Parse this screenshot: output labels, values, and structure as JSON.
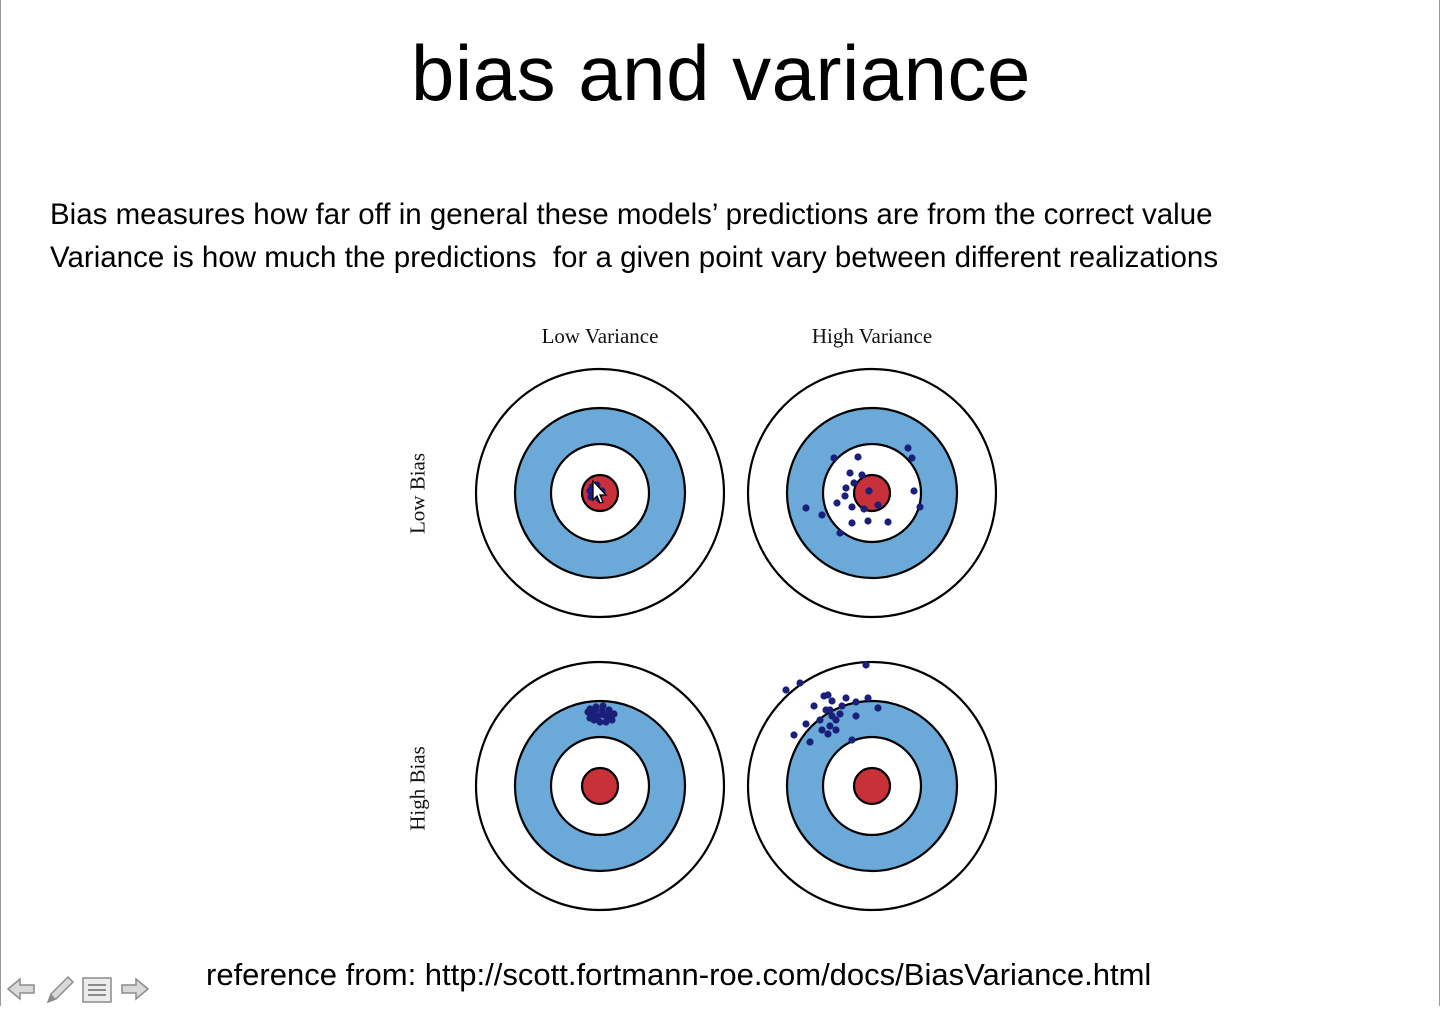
{
  "slide": {
    "title": "bias and variance",
    "description_lines": [
      "Bias measures how far off in general these models’ predictions are from the correct value",
      "Variance is how much the predictions  for a given point vary between different realizations"
    ],
    "reference": "reference from: http://scott.fortmann-roe.com/docs/BiasVariance.html"
  },
  "figure": {
    "column_labels": [
      "Low Variance",
      "High Variance"
    ],
    "row_labels": [
      "Low Bias",
      "High Bias"
    ],
    "colors": {
      "ring_outer": "#ffffff",
      "ring_blue": "#6aa9d8",
      "ring_white": "#ffffff",
      "bullseye": "#c8303a",
      "dot": "#1a1f7a",
      "stroke": "#000000"
    }
  },
  "toolbar": {
    "items": [
      {
        "name": "previous-slide-button",
        "icon": "left-arrow-icon"
      },
      {
        "name": "pen-tool-button",
        "icon": "pen-icon"
      },
      {
        "name": "slide-menu-button",
        "icon": "menu-icon"
      },
      {
        "name": "next-slide-button",
        "icon": "right-arrow-icon"
      }
    ]
  }
}
